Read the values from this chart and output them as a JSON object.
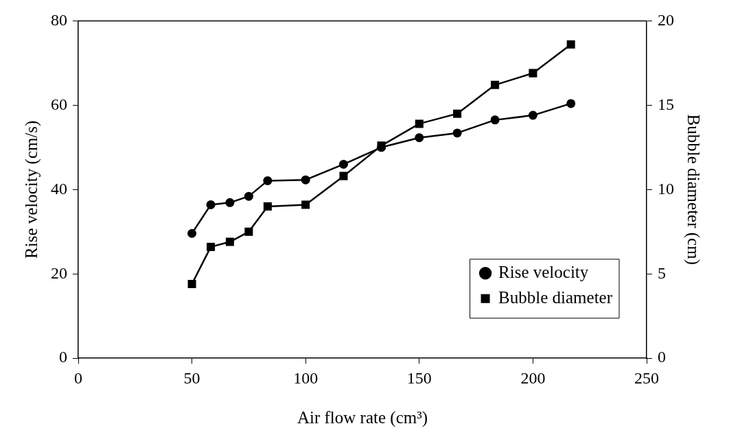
{
  "chart_data": {
    "type": "line",
    "xlabel": "Air flow rate (cm³)",
    "ylabel": "Rise velocity (cm/s)",
    "y2label": "Bubble diameter (cm)",
    "x": [
      50,
      58.3,
      66.7,
      75,
      83.3,
      100,
      116.7,
      133.3,
      150,
      166.7,
      183.3,
      200,
      216.7
    ],
    "series": [
      {
        "name": "Rise velocity",
        "color": "#000000",
        "marker": "circle",
        "values": [
          29.6,
          36.4,
          36.9,
          38.4,
          42.1,
          42.3,
          46.0,
          50.0,
          52.3,
          53.4,
          56.5,
          57.6,
          60.4
        ]
      },
      {
        "name": "Bubble diameter",
        "color": "#000000",
        "marker": "square",
        "axis": "y2",
        "values": [
          4.4,
          6.6,
          6.9,
          7.5,
          9.0,
          9.1,
          10.8,
          12.6,
          13.9,
          14.5,
          16.2,
          16.9,
          18.6
        ]
      }
    ],
    "xlim": [
      0,
      250
    ],
    "xticks": [
      0,
      50,
      100,
      150,
      200,
      250
    ],
    "ylim": [
      0,
      80
    ],
    "yticks": [
      0,
      20,
      40,
      60,
      80
    ],
    "y2lim": [
      0,
      20
    ],
    "y2ticks": [
      0,
      5,
      10,
      15,
      20
    ],
    "grid": false,
    "legend": "bottom right",
    "line_style": "solid"
  }
}
